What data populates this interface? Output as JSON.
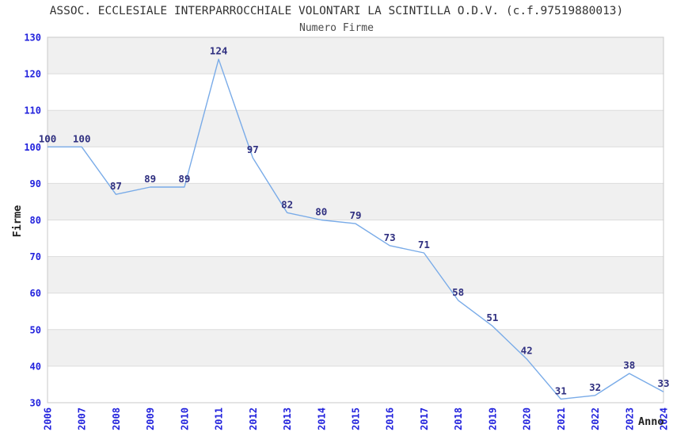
{
  "chart_data": {
    "type": "line",
    "title": "ASSOC. ECCLESIALE INTERPARROCCHIALE VOLONTARI LA SCINTILLA O.D.V. (c.f.97519880013)",
    "subtitle": "Numero Firme",
    "xlabel": "Anno",
    "ylabel": "Firme",
    "categories": [
      "2006",
      "2007",
      "2008",
      "2009",
      "2010",
      "2011",
      "2012",
      "2013",
      "2014",
      "2015",
      "2016",
      "2017",
      "2018",
      "2019",
      "2020",
      "2021",
      "2022",
      "2023",
      "2024"
    ],
    "values": [
      100,
      100,
      87,
      89,
      89,
      124,
      97,
      82,
      80,
      79,
      73,
      71,
      58,
      51,
      42,
      31,
      32,
      38,
      33
    ],
    "ylim": [
      30,
      130
    ],
    "ytick_step": 10,
    "grid": true,
    "legend_position": "none",
    "band_pattern": "alternating-horizontal",
    "colors": {
      "line": "#79abe8",
      "point_label": "#2f2f80",
      "tick_label": "#2323dd",
      "band": "#f0f0f0",
      "gridline": "#dcdcdc",
      "plot_border": "#c8c8c8",
      "title": "#333333",
      "subtitle": "#4a4a4a",
      "axis_title": "#222222"
    }
  }
}
